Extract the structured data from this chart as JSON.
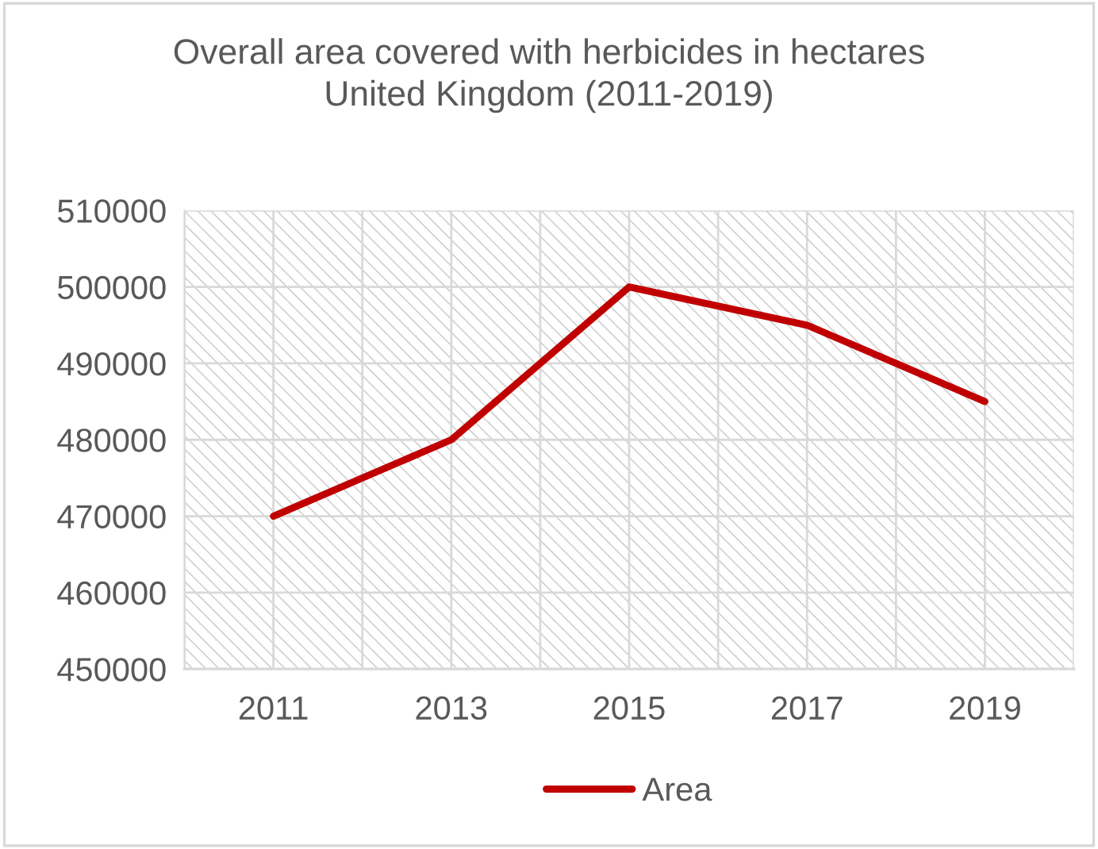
{
  "chart_data": {
    "type": "line",
    "title": "Overall area covered with herbicides in hectares\nUnited Kingdom (2011-2019)",
    "x": [
      2011,
      2013,
      2015,
      2017,
      2019
    ],
    "series": [
      {
        "name": "Area",
        "color": "#c00000",
        "values": [
          470000,
          480000,
          500000,
          495000,
          485000
        ]
      }
    ],
    "xlim": [
      2010,
      2020
    ],
    "xticks": [
      {
        "value": 2010,
        "label": null
      },
      2011,
      {
        "value": 2012,
        "label": null
      },
      2013,
      {
        "value": 2014,
        "label": null
      },
      2015,
      {
        "value": 2016,
        "label": null
      },
      2017,
      {
        "value": 2018,
        "label": null
      },
      2019,
      {
        "value": 2020,
        "label": null
      }
    ],
    "ylim": [
      450000,
      510000
    ],
    "yticks": [
      450000,
      460000,
      470000,
      480000,
      490000,
      500000,
      510000
    ],
    "grid": true,
    "legend": "bottom"
  }
}
